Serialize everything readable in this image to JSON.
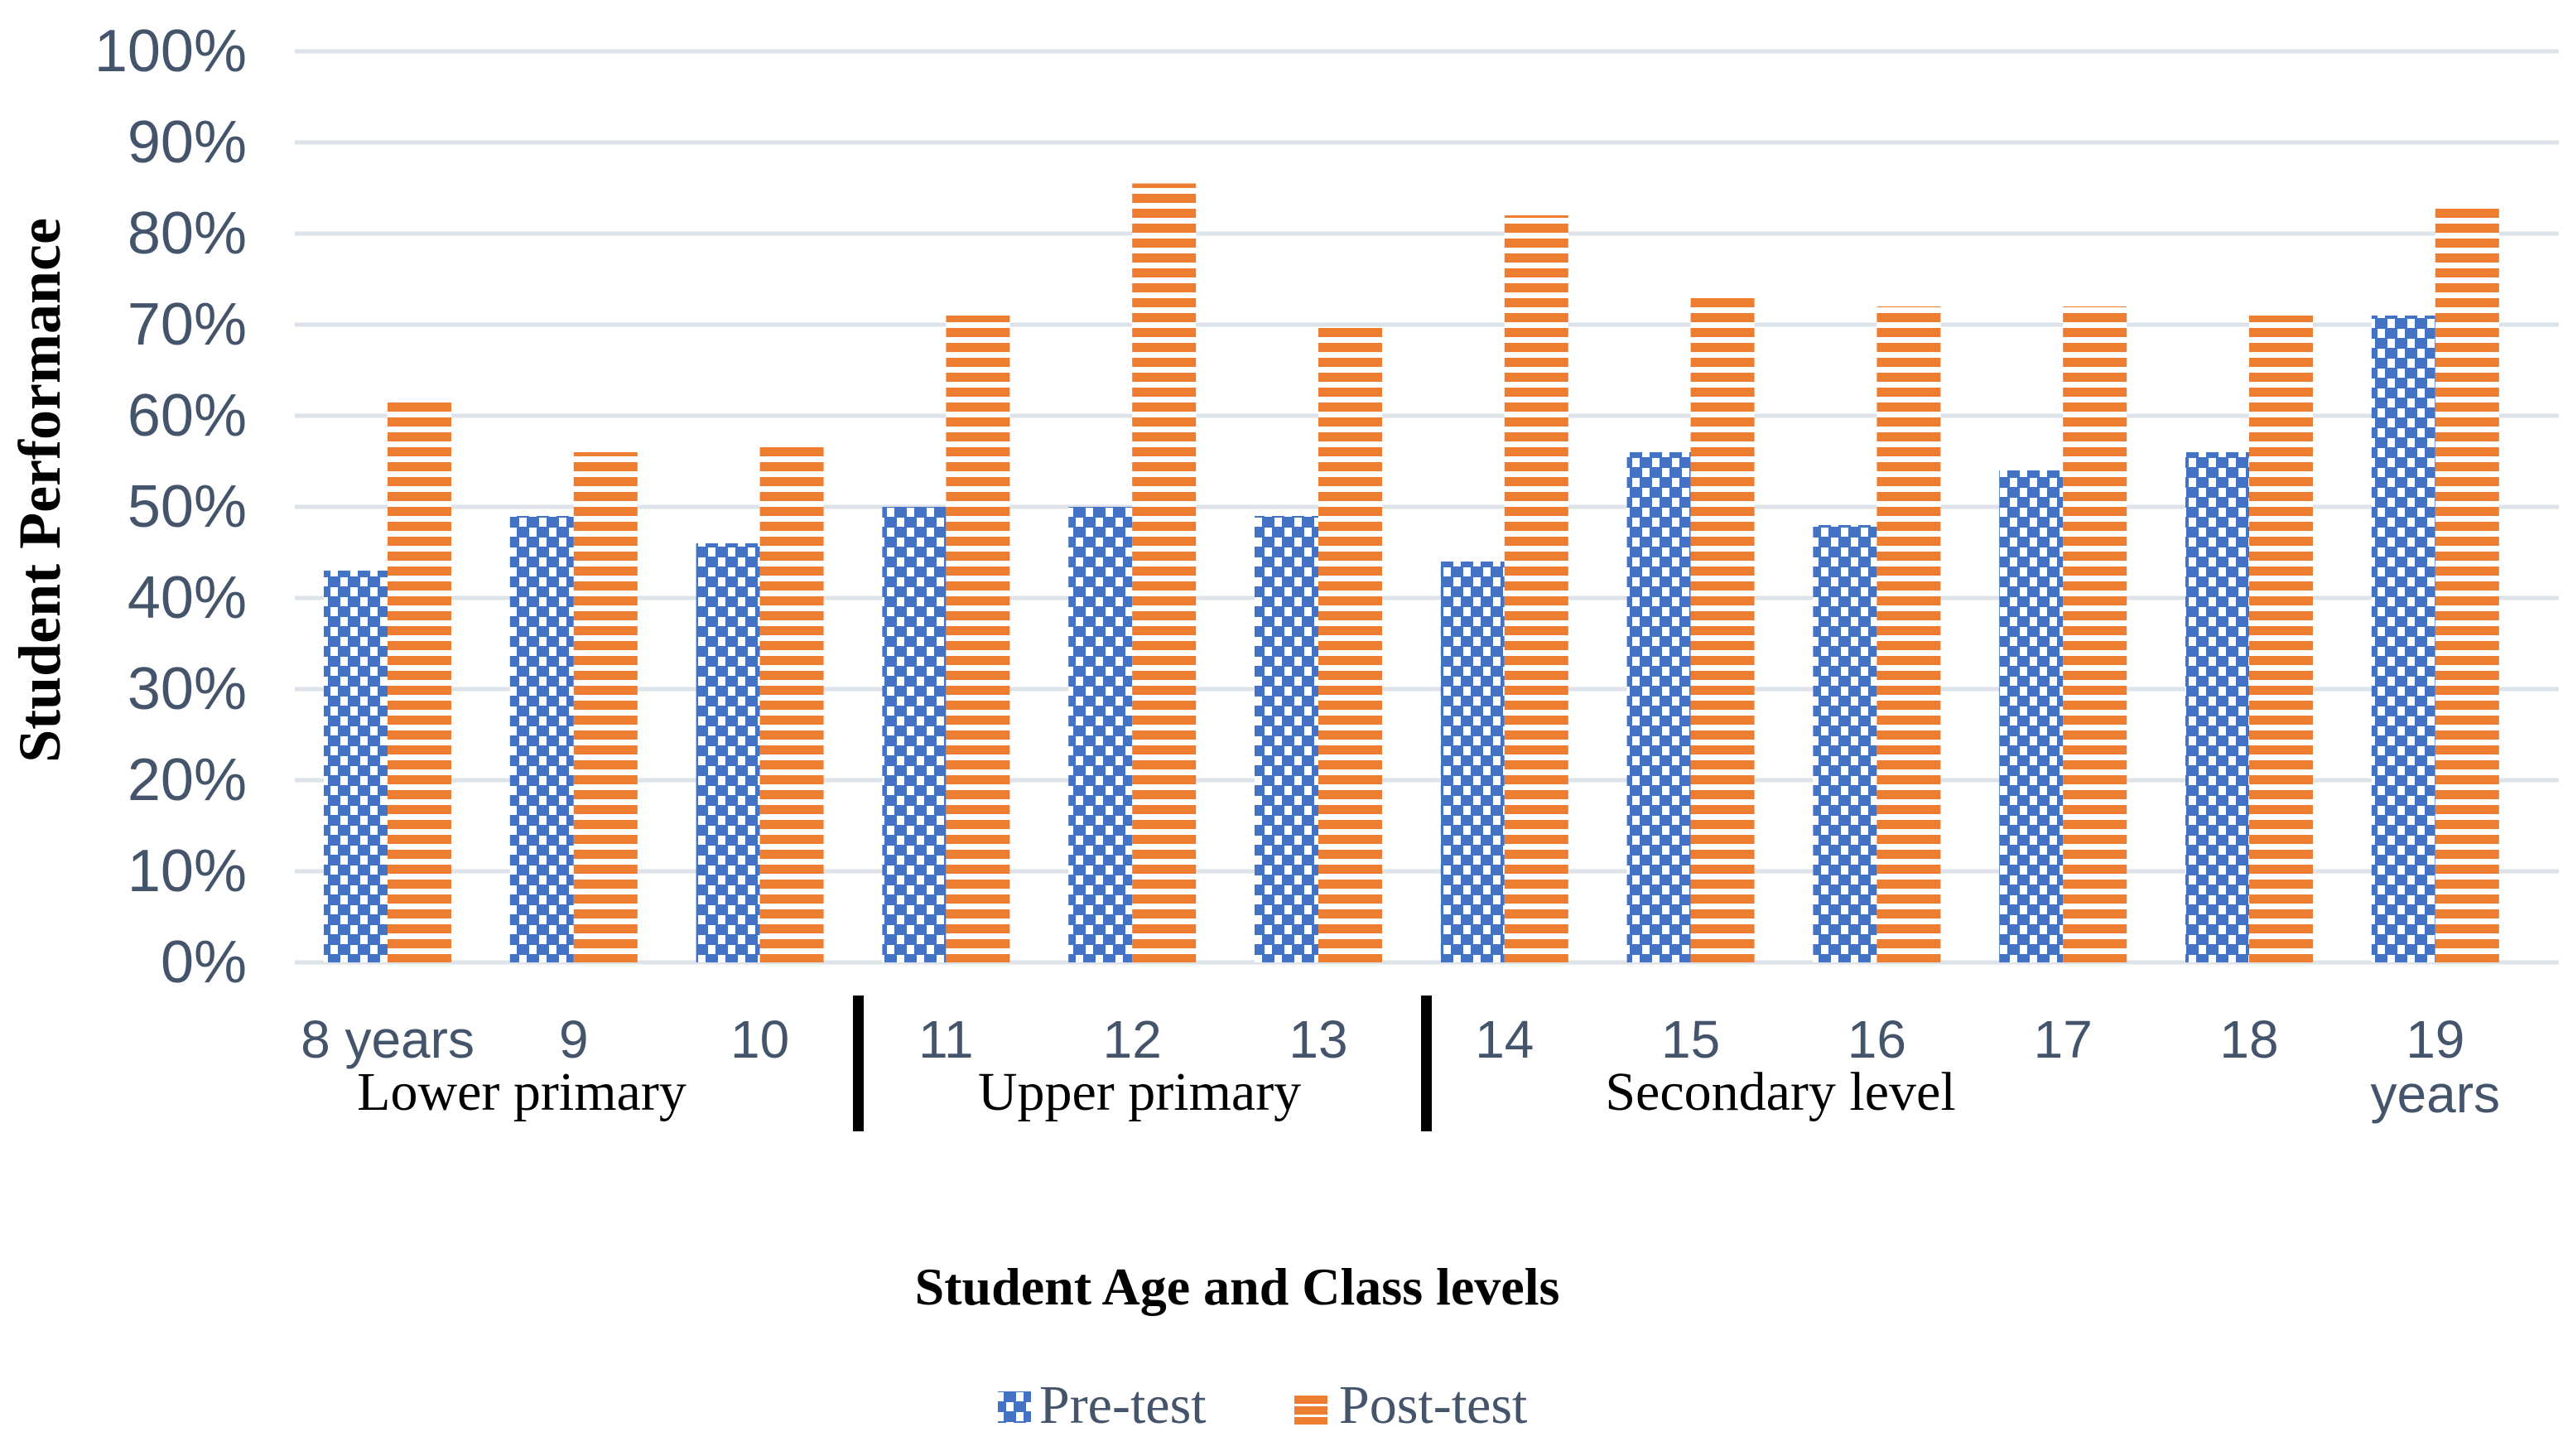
{
  "chart_data": {
    "type": "bar",
    "title": "",
    "xlabel": "Student Age and Class levels",
    "ylabel": "Student Performance",
    "categories": [
      "8 years",
      "9",
      "10",
      "11",
      "12",
      "13",
      "14",
      "15",
      "16",
      "17",
      "18",
      "19\nyears"
    ],
    "series": [
      {
        "name": "Pre-test",
        "values": [
          43,
          49,
          46,
          50,
          50,
          49,
          44,
          56,
          48,
          54,
          56,
          71
        ],
        "color": "#4472C4",
        "pattern": "white-dotted-squares"
      },
      {
        "name": "Post-test",
        "values": [
          62,
          56,
          57,
          71,
          85.5,
          69.7,
          82,
          73,
          72,
          72,
          71,
          83
        ],
        "color": "#ED7D31",
        "pattern": "white-horizontal-stripes"
      }
    ],
    "ylim": [
      0,
      100
    ],
    "y_ticks": [
      "0%",
      "10%",
      "20%",
      "30%",
      "40%",
      "50%",
      "60%",
      "70%",
      "80%",
      "90%",
      "100%"
    ],
    "grid": "horizontal",
    "legend_position": "bottom",
    "group_labels": [
      {
        "label": "Lower primary",
        "categories": [
          "8 years",
          "9",
          "10"
        ]
      },
      {
        "label": "Upper primary",
        "categories": [
          "11",
          "12",
          "13"
        ]
      },
      {
        "label": "Secondary level",
        "categories": [
          "14",
          "15",
          "16",
          "17",
          "18",
          "19 years"
        ]
      }
    ],
    "colors": {
      "pre_bar": "#4472C4",
      "post_bar": "#ED7D31",
      "axis_text": "#44546A",
      "gridline": "#DEE3EA",
      "divider": "#000000",
      "title_text": "#000000"
    }
  }
}
